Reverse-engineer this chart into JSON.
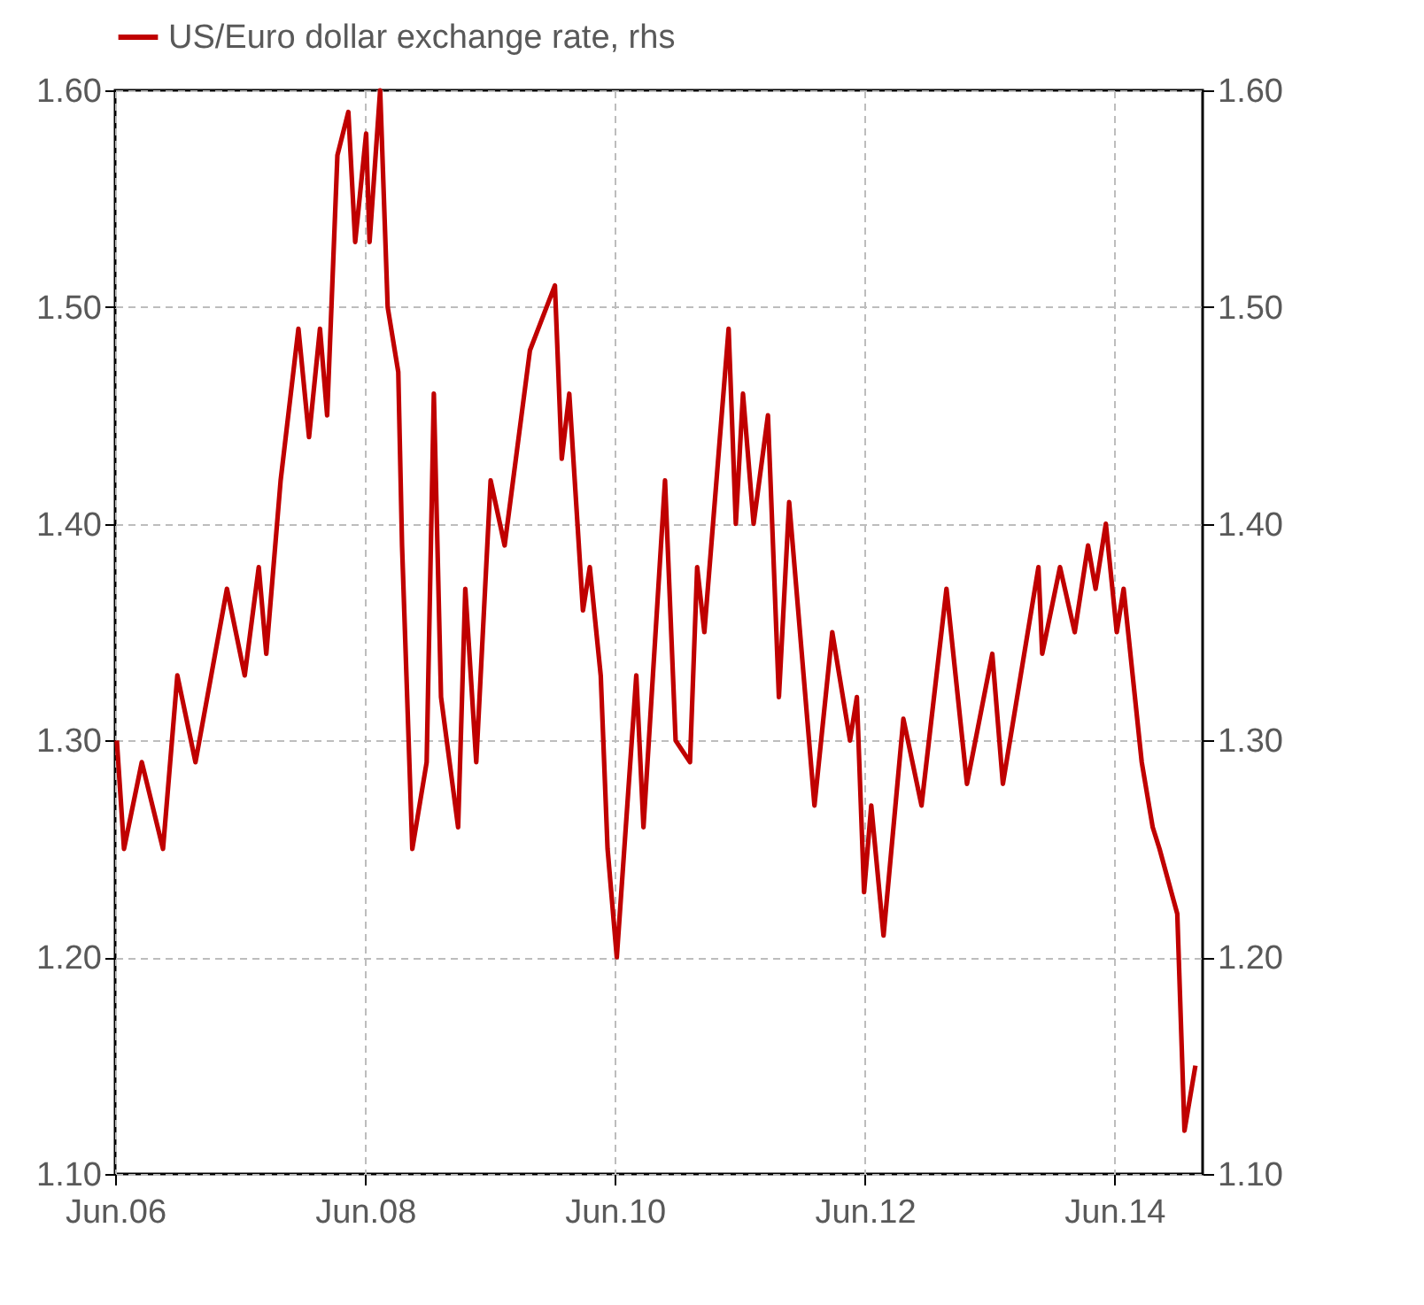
{
  "chart_data": {
    "type": "line",
    "x": [
      "2006-06-06",
      "2006-06-27",
      "2006-08-18",
      "2006-10-19",
      "2006-11-30",
      "2007-01-22",
      "2007-04-24",
      "2007-06-15",
      "2007-07-26",
      "2007-08-17",
      "2007-09-28",
      "2007-11-19",
      "2007-12-20",
      "2008-01-21",
      "2008-02-11",
      "2008-03-12",
      "2008-04-13",
      "2008-05-03",
      "2008-06-04",
      "2008-06-14",
      "2008-07-15",
      "2008-08-06",
      "2008-09-06",
      "2008-09-17",
      "2008-10-17",
      "2008-11-28",
      "2008-12-19",
      "2009-01-09",
      "2009-02-28",
      "2009-03-21",
      "2009-04-22",
      "2009-06-03",
      "2009-07-14",
      "2009-09-26",
      "2009-12-08",
      "2009-12-28",
      "2010-01-19",
      "2010-02-28",
      "2010-03-20",
      "2010-04-21",
      "2010-05-11",
      "2010-06-07",
      "2010-08-03",
      "2010-08-24",
      "2010-10-26",
      "2010-11-26",
      "2011-01-07",
      "2011-01-28",
      "2011-02-18",
      "2011-04-30",
      "2011-05-21",
      "2011-06-11",
      "2011-07-12",
      "2011-08-23",
      "2011-09-24",
      "2011-10-24",
      "2012-01-06",
      "2012-02-27",
      "2012-04-19",
      "2012-05-09",
      "2012-05-30",
      "2012-06-20",
      "2012-07-26",
      "2012-09-22",
      "2012-11-14",
      "2013-01-26",
      "2013-03-27",
      "2013-06-09",
      "2013-07-10",
      "2013-10-22",
      "2013-11-02",
      "2013-12-24",
      "2014-02-05",
      "2014-03-16",
      "2014-04-07",
      "2014-05-07",
      "2014-06-08",
      "2014-06-28",
      "2014-08-20",
      "2014-09-21",
      "2014-10-11",
      "2014-12-02",
      "2014-12-23",
      "2015-01-24"
    ],
    "series": [
      {
        "name": "US/Euro dollar exchange rate, rhs",
        "color": "#c00000",
        "axis": "y2",
        "values": [
          1.3,
          1.25,
          1.29,
          1.25,
          1.33,
          1.29,
          1.37,
          1.33,
          1.38,
          1.34,
          1.42,
          1.49,
          1.44,
          1.49,
          1.45,
          1.57,
          1.59,
          1.53,
          1.58,
          1.53,
          1.6,
          1.5,
          1.47,
          1.39,
          1.25,
          1.29,
          1.46,
          1.32,
          1.26,
          1.37,
          1.29,
          1.42,
          1.39,
          1.48,
          1.51,
          1.43,
          1.46,
          1.36,
          1.38,
          1.33,
          1.25,
          1.2,
          1.33,
          1.26,
          1.42,
          1.3,
          1.29,
          1.38,
          1.35,
          1.49,
          1.4,
          1.46,
          1.4,
          1.45,
          1.32,
          1.41,
          1.27,
          1.35,
          1.3,
          1.32,
          1.23,
          1.27,
          1.21,
          1.31,
          1.27,
          1.37,
          1.28,
          1.34,
          1.28,
          1.38,
          1.34,
          1.38,
          1.35,
          1.39,
          1.37,
          1.4,
          1.35,
          1.37,
          1.29,
          1.26,
          1.25,
          1.22,
          1.12,
          1.15
        ]
      }
    ],
    "xlim": [
      "2006-06-01",
      "2015-02-14"
    ],
    "xticks": [
      {
        "value": "2006-06-01",
        "label": "Jun.06"
      },
      {
        "value": "2008-06-01",
        "label": "Jun.08"
      },
      {
        "value": "2010-06-01",
        "label": "Jun.10"
      },
      {
        "value": "2012-06-01",
        "label": "Jun.12"
      },
      {
        "value": "2014-06-01",
        "label": "Jun.14"
      }
    ],
    "ylim": [
      1.1,
      1.6
    ],
    "yticks": [
      {
        "value": 1.1,
        "label": "1.10"
      },
      {
        "value": 1.2,
        "label": "1.20"
      },
      {
        "value": 1.3,
        "label": "1.30"
      },
      {
        "value": 1.4,
        "label": "1.40"
      },
      {
        "value": 1.5,
        "label": "1.50"
      },
      {
        "value": 1.6,
        "label": "1.60"
      }
    ],
    "y2lim": [
      1.1,
      1.6
    ],
    "y2ticks": [
      {
        "value": 1.1,
        "label": "1.10"
      },
      {
        "value": 1.2,
        "label": "1.20"
      },
      {
        "value": 1.3,
        "label": "1.30"
      },
      {
        "value": 1.4,
        "label": "1.40"
      },
      {
        "value": 1.5,
        "label": "1.50"
      },
      {
        "value": 1.6,
        "label": "1.60"
      }
    ],
    "grid": true,
    "legend": "top"
  }
}
